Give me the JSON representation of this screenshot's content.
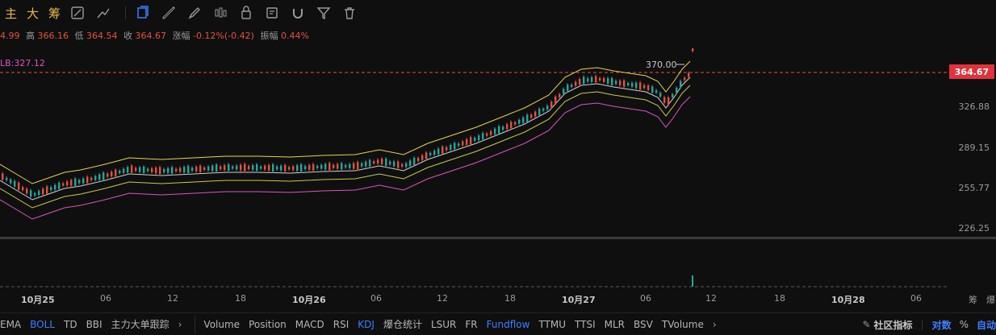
{
  "toolbar": {
    "tabs": [
      "主",
      "大",
      "筹"
    ],
    "icons": [
      "split-panel-icon",
      "trend-line-tool-icon",
      "cursor-icon",
      "ray-tool-icon",
      "brush-icon",
      "candlestick-tool-icon",
      "lock-icon",
      "note-icon",
      "magnet-icon",
      "filter-icon",
      "trash-icon"
    ],
    "icon_color": "#9a9a9a",
    "accent_color": "#e6b84a",
    "active_icon_color": "#3d7fff"
  },
  "info": {
    "open_partial": "4.99",
    "high_label": "高",
    "high": "366.16",
    "low_label": "低",
    "low": "364.54",
    "close_label": "收",
    "close": "364.67",
    "change_label": "涨幅",
    "change": "-0.12%(-0.42)",
    "amplitude_label": "振幅",
    "amplitude": "0.44%"
  },
  "boll": {
    "lb_label": "LB:327.12"
  },
  "y_axis": {
    "ticks": [
      "326.88",
      "289.15",
      "255.77",
      "226.25"
    ],
    "current_price": "364.67",
    "price_tag_color": "#e0333d",
    "max_marker": "370.00"
  },
  "x_axis": {
    "ticks": [
      {
        "label": "10月25",
        "bold": true
      },
      {
        "label": "06",
        "bold": false
      },
      {
        "label": "12",
        "bold": false
      },
      {
        "label": "18",
        "bold": false
      },
      {
        "label": "10月26",
        "bold": true
      },
      {
        "label": "06",
        "bold": false
      },
      {
        "label": "12",
        "bold": false
      },
      {
        "label": "18",
        "bold": false
      },
      {
        "label": "10月27",
        "bold": true
      },
      {
        "label": "06",
        "bold": false
      },
      {
        "label": "12",
        "bold": false
      },
      {
        "label": "18",
        "bold": false
      },
      {
        "label": "10月28",
        "bold": true
      },
      {
        "label": "06",
        "bold": false
      }
    ],
    "right_labels": [
      "筹",
      "爆"
    ]
  },
  "indicators": {
    "main": [
      "EMA",
      "BOLL",
      "TD",
      "BBI",
      "主力大单跟踪"
    ],
    "main_active": "BOLL",
    "sub": [
      "Volume",
      "Position",
      "MACD",
      "RSI",
      "KDJ",
      "爆仓统计",
      "LSUR",
      "FR",
      "Fundflow",
      "TTMU",
      "TTSI",
      "MLR",
      "BSV",
      "TVolume"
    ],
    "sub_active": [
      "KDJ",
      "Fundflow"
    ],
    "chevron": "›",
    "right": {
      "community": "社区指标",
      "log": "对数",
      "percent": "%",
      "auto": "自动"
    }
  },
  "colors": {
    "up": "#26a69a",
    "down": "#e0533d",
    "boll_upper": "#e6d44a",
    "boll_mid": "#cfcfcf",
    "boll_lower": "#d857b6",
    "ma_yellow": "#c9c94a"
  }
}
